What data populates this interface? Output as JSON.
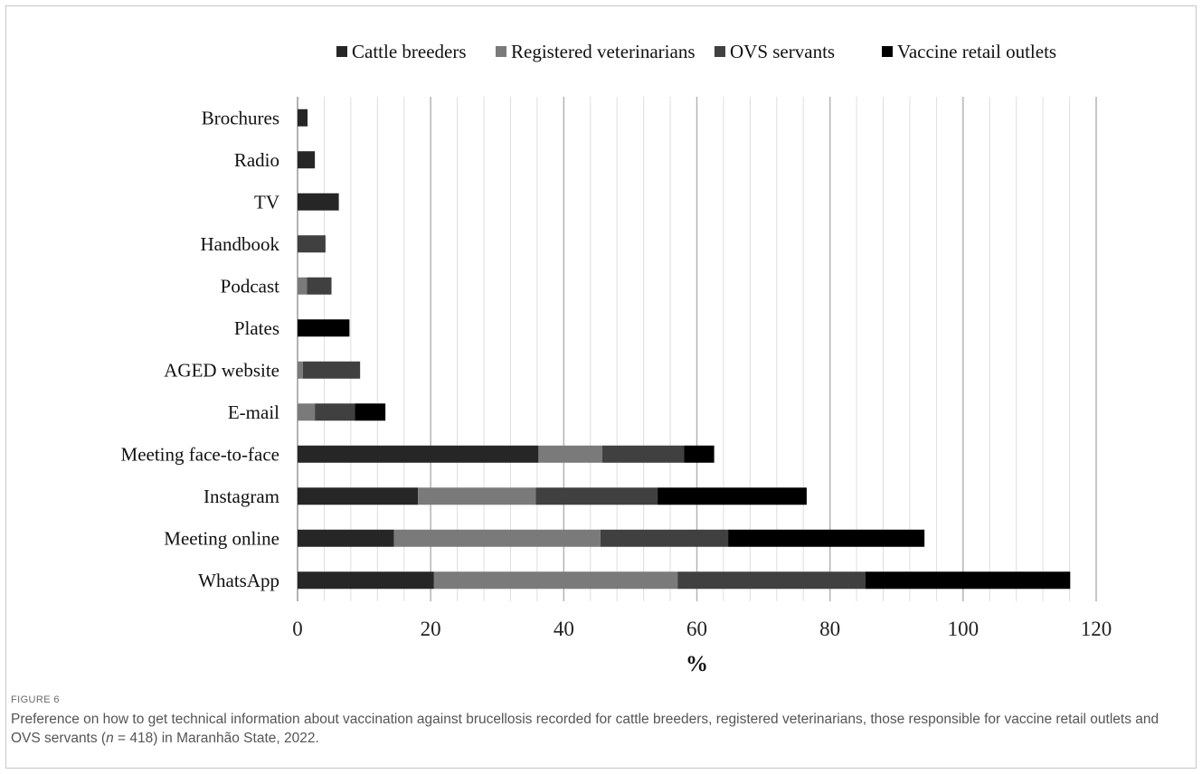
{
  "chart_data": {
    "type": "bar",
    "orientation": "horizontal",
    "stacked": true,
    "categories": [
      "Brochures",
      "Radio",
      "TV",
      "Handbook",
      "Podcast",
      "Plates",
      "AGED website",
      "E-mail",
      "Meeting face-to-face",
      "Instagram",
      "Meeting online",
      "WhatsApp"
    ],
    "series": [
      {
        "name": "Cattle breeders",
        "color": "#262626",
        "values": [
          1.5,
          2.6,
          6.2,
          0,
          0,
          0,
          0,
          0,
          36.2,
          18.1,
          14.5,
          20.5
        ]
      },
      {
        "name": "Registered veterinarians",
        "color": "#7a7a7a",
        "values": [
          0,
          0,
          0,
          0,
          1.4,
          0,
          0.8,
          2.6,
          9.6,
          17.7,
          31.0,
          36.6
        ]
      },
      {
        "name": "OVS servants",
        "color": "#404040",
        "values": [
          0,
          0,
          0,
          4.2,
          3.7,
          0,
          8.6,
          6.0,
          12.3,
          18.3,
          19.2,
          28.2
        ]
      },
      {
        "name": "Vaccine retail outlets",
        "color": "#000000",
        "values": [
          0,
          0,
          0,
          0,
          0,
          7.8,
          0,
          4.6,
          4.5,
          22.4,
          29.5,
          30.8
        ]
      }
    ],
    "xlabel": "%",
    "xlim": [
      0,
      120
    ],
    "xticks": [
      0,
      20,
      40,
      60,
      80,
      100,
      120
    ],
    "major_grid_step": 20,
    "minor_grid_step": 4,
    "grid": true,
    "legend_position": "top"
  },
  "figure": {
    "label": "FIGURE 6",
    "caption_pre": "Preference on how to get technical information about vaccination against brucellosis recorded for cattle breeders, registered veterinarians, those responsible for vaccine retail outlets and OVS servants (",
    "caption_n": "n",
    "caption_post": " = 418) in Maranhão State, 2022."
  }
}
